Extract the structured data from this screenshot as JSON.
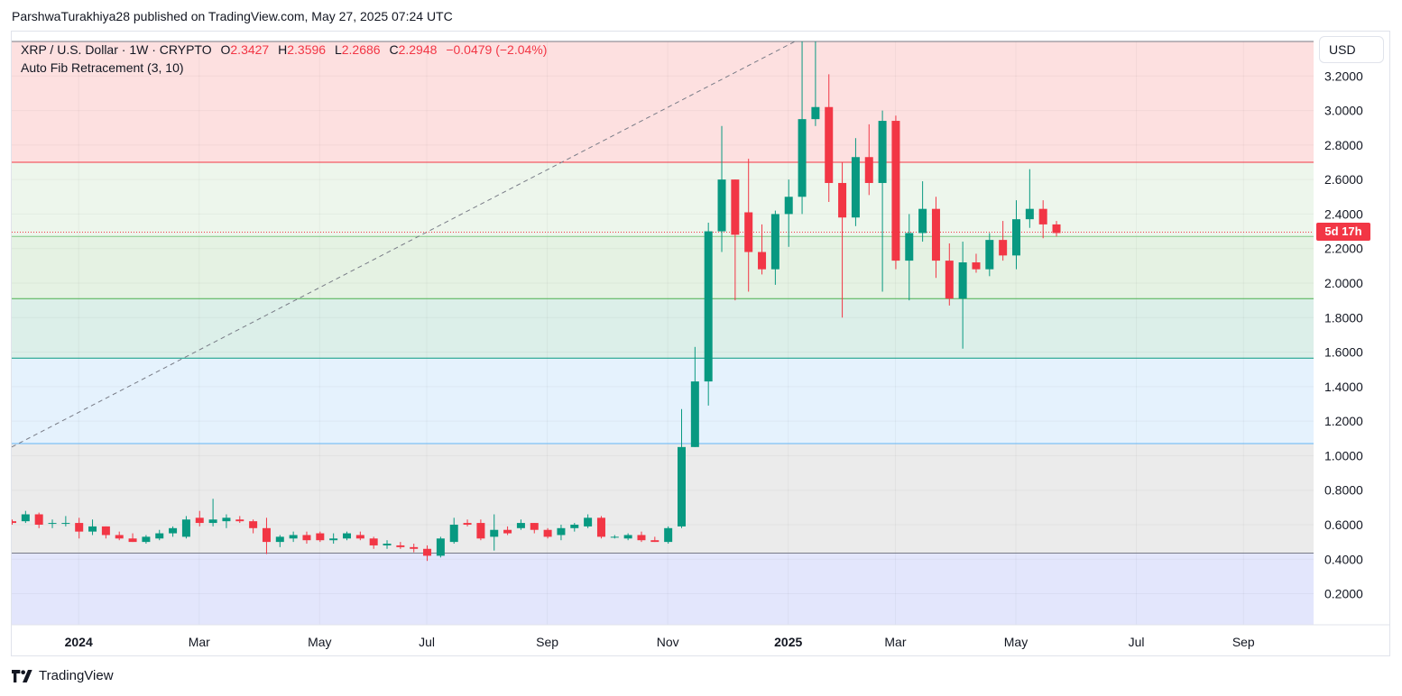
{
  "header": {
    "publish_line": "ParshwaTurakhiya28 published on TradingView.com, May 27, 2025 07:24 UTC"
  },
  "legend": {
    "symbol": "XRP / U.S. Dollar · 1W · CRYPTO",
    "o_label": "O",
    "o_value": "2.3427",
    "h_label": "H",
    "h_value": "2.3596",
    "l_label": "L",
    "l_value": "2.2686",
    "c_label": "C",
    "c_value": "2.2948",
    "change": "−0.0479 (−2.04%)",
    "indicator": "Auto Fib Retracement (3, 10)"
  },
  "currency_button": "USD",
  "countdown": "5d 17h",
  "brand": "TradingView",
  "colors": {
    "up": "#089981",
    "down": "#f23645",
    "fib_red": "#fde0e0",
    "fib_green_light": "#edf6ec",
    "fib_green": "#e5f2e3",
    "fib_teal": "#dcefe9",
    "fib_blue": "#e5f2fd",
    "fib_gray": "#ebebeb",
    "fib_purple": "#e3e6fc"
  },
  "chart_data": {
    "type": "candlestick",
    "y_scale": "linear",
    "ylim": [
      0.02,
      3.4
    ],
    "y_ticks": [
      "3.2000",
      "3.0000",
      "2.8000",
      "2.6000",
      "2.4000",
      "2.2000",
      "2.0000",
      "1.8000",
      "1.6000",
      "1.4000",
      "1.2000",
      "1.0000",
      "0.8000",
      "0.6000",
      "0.4000",
      "0.2000"
    ],
    "x_ticks": [
      {
        "label": "2024",
        "bold": true,
        "week": 5
      },
      {
        "label": "Mar",
        "bold": false,
        "week": 14
      },
      {
        "label": "May",
        "bold": false,
        "week": 23
      },
      {
        "label": "Jul",
        "bold": false,
        "week": 31
      },
      {
        "label": "Sep",
        "bold": false,
        "week": 40
      },
      {
        "label": "Nov",
        "bold": false,
        "week": 49
      },
      {
        "label": "2025",
        "bold": true,
        "week": 58
      },
      {
        "label": "Mar",
        "bold": false,
        "week": 66
      },
      {
        "label": "May",
        "bold": false,
        "week": 75
      },
      {
        "label": "Jul",
        "bold": false,
        "week": 84
      },
      {
        "label": "Sep",
        "bold": false,
        "week": 92
      }
    ],
    "fib_levels": [
      3.4,
      2.7,
      2.27,
      1.91,
      1.565,
      1.07,
      0.435,
      0.02
    ],
    "fib_zone_colors": [
      "fib_red",
      "fib_green_light",
      "fib_green",
      "fib_teal",
      "fib_blue",
      "fib_gray",
      "fib_purple"
    ],
    "fib_line_colors": [
      "#787b86",
      "#f23645",
      "#81c784",
      "#4caf50",
      "#089981",
      "#64b5f6",
      "#787b86",
      "#787b86"
    ],
    "trendline": {
      "from": {
        "week": 0,
        "price": 1.05
      },
      "to": {
        "week": 58.5,
        "price": 3.4
      }
    },
    "last_close": 2.2948,
    "candles": [
      [
        0.62,
        0.63,
        0.6,
        0.61
      ],
      [
        0.62,
        0.68,
        0.61,
        0.66
      ],
      [
        0.66,
        0.67,
        0.58,
        0.6
      ],
      [
        0.61,
        0.63,
        0.58,
        0.61
      ],
      [
        0.61,
        0.65,
        0.59,
        0.61
      ],
      [
        0.61,
        0.64,
        0.52,
        0.56
      ],
      [
        0.56,
        0.63,
        0.54,
        0.59
      ],
      [
        0.59,
        0.59,
        0.52,
        0.54
      ],
      [
        0.54,
        0.56,
        0.51,
        0.52
      ],
      [
        0.52,
        0.55,
        0.5,
        0.5
      ],
      [
        0.5,
        0.54,
        0.49,
        0.53
      ],
      [
        0.52,
        0.57,
        0.51,
        0.55
      ],
      [
        0.55,
        0.59,
        0.53,
        0.58
      ],
      [
        0.53,
        0.65,
        0.52,
        0.63
      ],
      [
        0.64,
        0.68,
        0.59,
        0.61
      ],
      [
        0.61,
        0.75,
        0.59,
        0.63
      ],
      [
        0.62,
        0.66,
        0.58,
        0.64
      ],
      [
        0.63,
        0.65,
        0.61,
        0.62
      ],
      [
        0.62,
        0.63,
        0.55,
        0.58
      ],
      [
        0.58,
        0.64,
        0.43,
        0.5
      ],
      [
        0.5,
        0.54,
        0.47,
        0.53
      ],
      [
        0.52,
        0.56,
        0.5,
        0.54
      ],
      [
        0.54,
        0.56,
        0.49,
        0.51
      ],
      [
        0.55,
        0.56,
        0.5,
        0.51
      ],
      [
        0.51,
        0.55,
        0.49,
        0.52
      ],
      [
        0.52,
        0.56,
        0.51,
        0.55
      ],
      [
        0.54,
        0.56,
        0.51,
        0.52
      ],
      [
        0.52,
        0.53,
        0.46,
        0.48
      ],
      [
        0.48,
        0.51,
        0.46,
        0.49
      ],
      [
        0.48,
        0.5,
        0.46,
        0.47
      ],
      [
        0.47,
        0.49,
        0.44,
        0.46
      ],
      [
        0.46,
        0.48,
        0.39,
        0.42
      ],
      [
        0.42,
        0.53,
        0.41,
        0.52
      ],
      [
        0.5,
        0.64,
        0.49,
        0.6
      ],
      [
        0.61,
        0.63,
        0.59,
        0.6
      ],
      [
        0.61,
        0.63,
        0.51,
        0.52
      ],
      [
        0.53,
        0.66,
        0.45,
        0.57
      ],
      [
        0.57,
        0.59,
        0.54,
        0.55
      ],
      [
        0.58,
        0.63,
        0.57,
        0.61
      ],
      [
        0.61,
        0.61,
        0.55,
        0.57
      ],
      [
        0.57,
        0.58,
        0.52,
        0.53
      ],
      [
        0.54,
        0.6,
        0.51,
        0.58
      ],
      [
        0.58,
        0.61,
        0.56,
        0.6
      ],
      [
        0.59,
        0.66,
        0.58,
        0.64
      ],
      [
        0.64,
        0.65,
        0.52,
        0.53
      ],
      [
        0.53,
        0.54,
        0.52,
        0.53
      ],
      [
        0.52,
        0.55,
        0.51,
        0.54
      ],
      [
        0.54,
        0.56,
        0.5,
        0.51
      ],
      [
        0.51,
        0.53,
        0.5,
        0.5
      ],
      [
        0.5,
        0.59,
        0.49,
        0.58
      ],
      [
        0.59,
        1.27,
        0.58,
        1.05
      ],
      [
        1.05,
        1.63,
        1.05,
        1.43
      ],
      [
        1.43,
        2.35,
        1.29,
        2.3
      ],
      [
        2.3,
        2.91,
        2.18,
        2.6
      ],
      [
        2.6,
        2.6,
        1.9,
        2.28
      ],
      [
        2.41,
        2.72,
        1.95,
        2.18
      ],
      [
        2.18,
        2.34,
        2.05,
        2.08
      ],
      [
        2.08,
        2.42,
        1.99,
        2.4
      ],
      [
        2.4,
        2.6,
        2.21,
        2.5
      ],
      [
        2.5,
        3.4,
        2.4,
        2.95
      ],
      [
        2.95,
        3.4,
        2.91,
        3.02
      ],
      [
        3.02,
        3.21,
        2.47,
        2.58
      ],
      [
        2.58,
        2.7,
        1.8,
        2.38
      ],
      [
        2.38,
        2.84,
        2.33,
        2.73
      ],
      [
        2.73,
        2.92,
        2.51,
        2.58
      ],
      [
        2.58,
        3.0,
        1.95,
        2.94
      ],
      [
        2.94,
        2.97,
        2.08,
        2.13
      ],
      [
        2.13,
        2.4,
        1.9,
        2.29
      ],
      [
        2.29,
        2.59,
        2.24,
        2.43
      ],
      [
        2.43,
        2.5,
        2.03,
        2.13
      ],
      [
        2.13,
        2.23,
        1.87,
        1.91
      ],
      [
        1.91,
        2.24,
        1.62,
        2.12
      ],
      [
        2.12,
        2.17,
        2.06,
        2.08
      ],
      [
        2.08,
        2.29,
        2.04,
        2.25
      ],
      [
        2.25,
        2.36,
        2.13,
        2.16
      ],
      [
        2.16,
        2.48,
        2.08,
        2.37
      ],
      [
        2.37,
        2.66,
        2.32,
        2.43
      ],
      [
        2.43,
        2.48,
        2.26,
        2.34
      ],
      [
        2.34,
        2.36,
        2.27,
        2.29
      ]
    ]
  }
}
